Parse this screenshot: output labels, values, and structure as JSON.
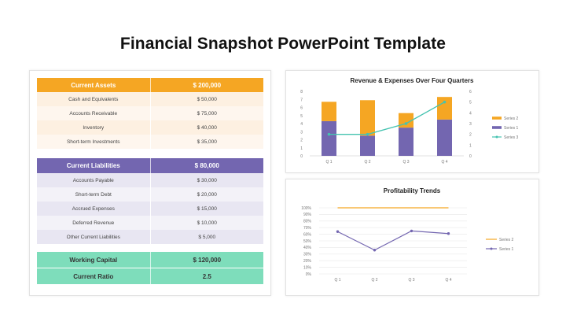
{
  "title": "Financial Snapshot PowerPoint Template",
  "colors": {
    "orange": "#F5A623",
    "orange_light1": "#FDF0E1",
    "orange_light2": "#FEF6EE",
    "purple": "#7366B0",
    "purple_light1": "#E8E6F2",
    "purple_light2": "#F3F2F8",
    "green": "#7EDDBB",
    "teal": "#45C3B0",
    "grid": "#e6e6e6"
  },
  "assets": {
    "header": [
      "Current Assets",
      "$ 200,000"
    ],
    "rows": [
      [
        "Cash and Equivalents",
        "$ 50,000"
      ],
      [
        "Accounts Receivable",
        "$ 75,000"
      ],
      [
        "Inventory",
        "$ 40,000"
      ],
      [
        "Short-term Investments",
        "$ 35,000"
      ]
    ]
  },
  "liabilities": {
    "header": [
      "Current Liabilities",
      "$ 80,000"
    ],
    "rows": [
      [
        "Accounts Payable",
        "$ 30,000"
      ],
      [
        "Short-term Debt",
        "$ 20,000"
      ],
      [
        "Accrued Expenses",
        "$ 15,000"
      ],
      [
        "Deferred Revenue",
        "$ 10,000"
      ],
      [
        "Other Current Liabilities",
        "$ 5,000"
      ]
    ]
  },
  "summary": {
    "rows": [
      [
        "Working Capital",
        "$ 120,000"
      ],
      [
        "Current Ratio",
        "2.5"
      ]
    ]
  },
  "chart_data": [
    {
      "type": "bar",
      "title": "Revenue & Expenses Over Four Quarters",
      "categories": [
        "Q 1",
        "Q 2",
        "Q 3",
        "Q 4"
      ],
      "ylim": [
        0,
        8
      ],
      "y_ticks": [
        "0",
        "1",
        "2",
        "3",
        "4",
        "5",
        "6",
        "7",
        "8"
      ],
      "y2lim": [
        0,
        6
      ],
      "y2_ticks": [
        "0",
        "1",
        "2",
        "3",
        "4",
        "5",
        "6"
      ],
      "stacked": true,
      "series": [
        {
          "name": "Series 1",
          "type": "bar",
          "color": "#7366B0",
          "values": [
            4.3,
            2.5,
            3.5,
            4.5
          ]
        },
        {
          "name": "Series 2",
          "type": "bar",
          "color": "#F5A623",
          "values": [
            2.4,
            4.4,
            1.8,
            2.8
          ]
        },
        {
          "name": "Series 3",
          "type": "line",
          "axis": "right",
          "color": "#45C3B0",
          "values": [
            2,
            2,
            3,
            5
          ]
        }
      ],
      "legend": [
        "Series 2",
        "Series 1",
        "Series 3"
      ],
      "legend_position": "right",
      "grid": false
    },
    {
      "type": "line",
      "title": "Profitability Trends",
      "categories": [
        "Q 1",
        "Q 2",
        "Q 3",
        "Q 4"
      ],
      "ylim": [
        0,
        100
      ],
      "y_ticks": [
        "0%",
        "10%",
        "20%",
        "30%",
        "40%",
        "50%",
        "60%",
        "70%",
        "80%",
        "90%",
        "100%"
      ],
      "series": [
        {
          "name": "Series 2",
          "color": "#F5A623",
          "values": [
            100,
            100,
            100,
            100
          ]
        },
        {
          "name": "Series 1",
          "color": "#7366B0",
          "values": [
            64,
            36,
            65,
            61
          ]
        }
      ],
      "legend": [
        "Series 2",
        "Series 1"
      ],
      "legend_position": "right",
      "grid": true
    }
  ]
}
